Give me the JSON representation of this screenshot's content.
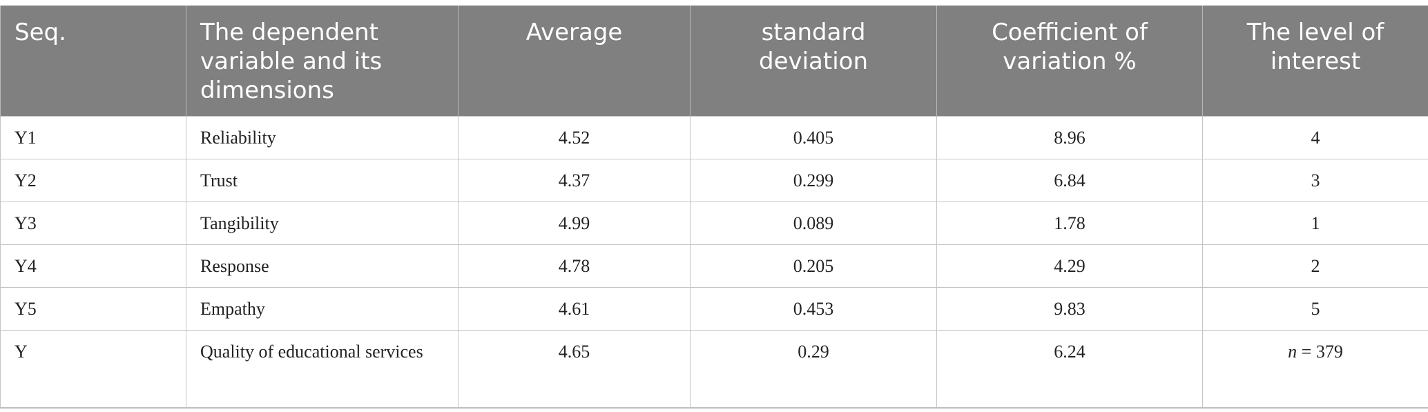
{
  "table": {
    "headers": [
      "Seq.",
      "The dependent variable and its dimensions",
      "Average",
      "standard deviation",
      "Coefficient of variation %",
      "The level of interest"
    ],
    "rows": [
      {
        "seq": "Y1",
        "dimension": "Reliability",
        "average": "4.52",
        "std_dev": "0.405",
        "cv": "8.96",
        "level": "4"
      },
      {
        "seq": "Y2",
        "dimension": "Trust",
        "average": "4.37",
        "std_dev": "0.299",
        "cv": "6.84",
        "level": "3"
      },
      {
        "seq": "Y3",
        "dimension": "Tangibility",
        "average": "4.99",
        "std_dev": "0.089",
        "cv": "1.78",
        "level": "1"
      },
      {
        "seq": "Y4",
        "dimension": "Response",
        "average": "4.78",
        "std_dev": "0.205",
        "cv": "4.29",
        "level": "2"
      },
      {
        "seq": "Y5",
        "dimension": "Empathy",
        "average": "4.61",
        "std_dev": "0.453",
        "cv": "9.83",
        "level": "5"
      },
      {
        "seq": "Y",
        "dimension": "Quality of educational services",
        "average": "4.65",
        "std_dev": "0.29",
        "cv": "6.24",
        "level_n_symbol": "n",
        "level_n_value": "= 379"
      }
    ]
  }
}
